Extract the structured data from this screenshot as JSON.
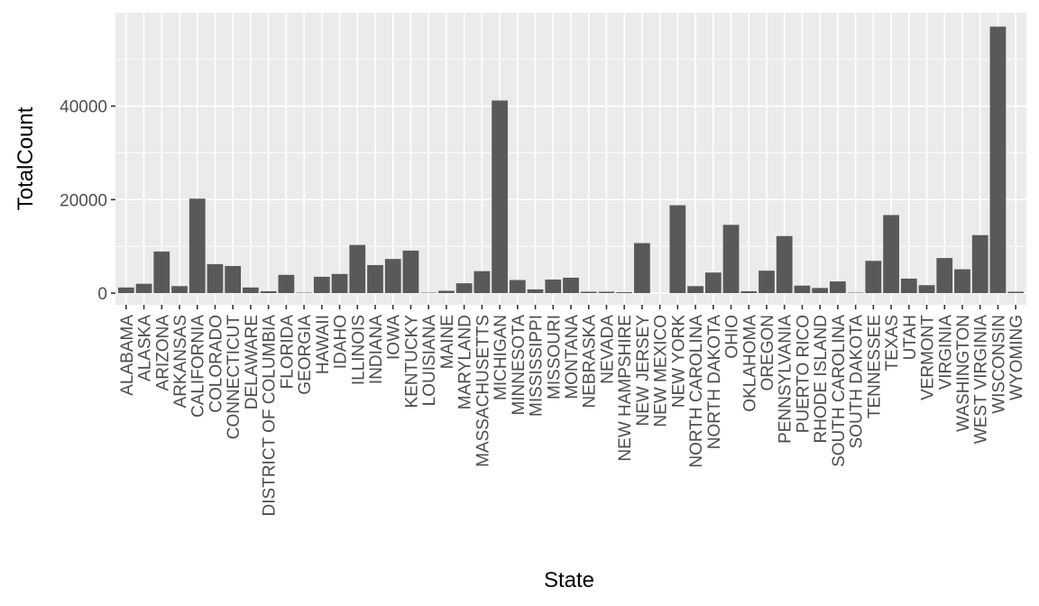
{
  "chart_data": {
    "type": "bar",
    "xlabel": "State",
    "ylabel": "TotalCount",
    "ylim": [
      -2500,
      60000
    ],
    "yticks": [
      0,
      20000,
      40000
    ],
    "ytick_labels": [
      "0",
      "20000",
      "40000"
    ],
    "grid": true,
    "colors": {
      "panel": "#ebebeb",
      "grid": "#ffffff",
      "bar": "#595959",
      "tick": "#333333",
      "tick_label": "#4d4d4d"
    },
    "categories": [
      "ALABAMA",
      "ALASKA",
      "ARIZONA",
      "ARKANSAS",
      "CALIFORNIA",
      "COLORADO",
      "CONNECTICUT",
      "DELAWARE",
      "DISTRICT OF COLUMBIA",
      "FLORIDA",
      "GEORGIA",
      "HAWAII",
      "IDAHO",
      "ILLINOIS",
      "INDIANA",
      "IOWA",
      "KENTUCKY",
      "LOUISIANA",
      "MAINE",
      "MARYLAND",
      "MASSACHUSETTS",
      "MICHIGAN",
      "MINNESOTA",
      "MISSISSIPPI",
      "MISSOURI",
      "MONTANA",
      "NEBRASKA",
      "NEVADA",
      "NEW HAMPSHIRE",
      "NEW JERSEY",
      "NEW MEXICO",
      "NEW YORK",
      "NORTH CAROLINA",
      "NORTH DAKOTA",
      "OHIO",
      "OKLAHOMA",
      "OREGON",
      "PENNSYLVANIA",
      "PUERTO RICO",
      "RHODE ISLAND",
      "SOUTH CAROLINA",
      "SOUTH DAKOTA",
      "TENNESSEE",
      "TEXAS",
      "UTAH",
      "VERMONT",
      "VIRGINIA",
      "WASHINGTON",
      "WEST VIRGINIA",
      "WISCONSIN",
      "WYOMING"
    ],
    "values": [
      1200,
      2000,
      8900,
      1500,
      20200,
      6200,
      5800,
      1200,
      400,
      3900,
      100,
      3500,
      4100,
      10300,
      6000,
      7300,
      9100,
      100,
      500,
      2100,
      4700,
      41200,
      2800,
      800,
      2900,
      3300,
      300,
      300,
      200,
      10700,
      0,
      18800,
      1500,
      4400,
      14600,
      400,
      4800,
      12200,
      1600,
      1100,
      2500,
      100,
      6900,
      16700,
      3100,
      1700,
      7500,
      5100,
      12400,
      57000,
      300
    ]
  }
}
